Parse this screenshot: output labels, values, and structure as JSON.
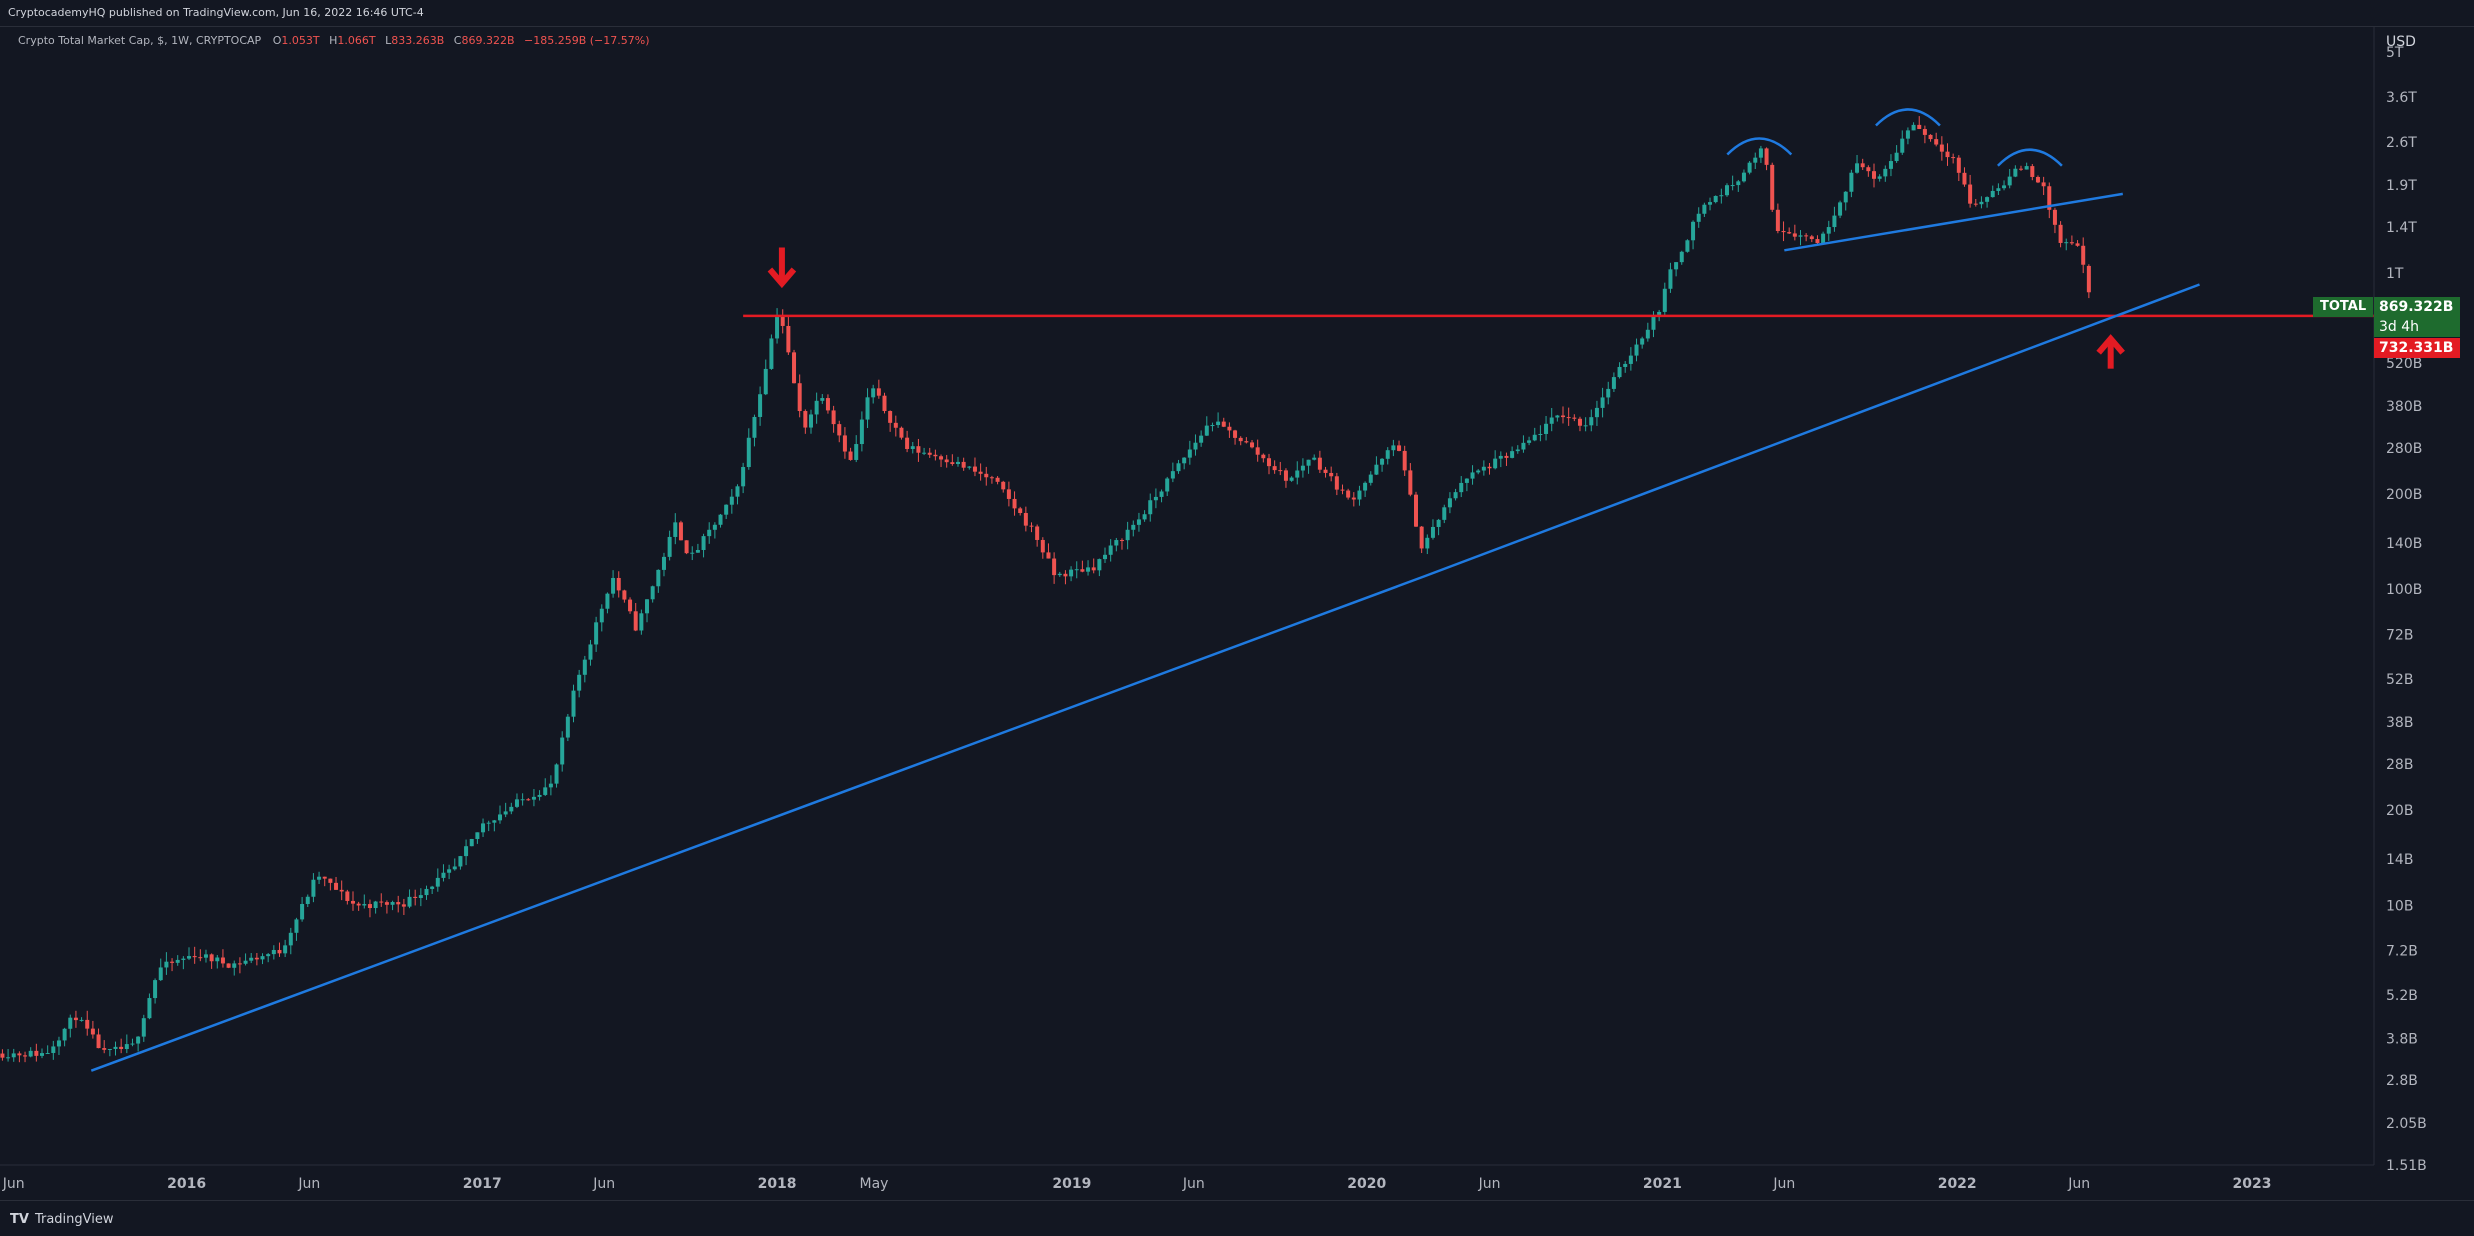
{
  "header": {
    "publisher_line": "CryptocademyHQ published on TradingView.com, Jun 16, 2022 16:46 UTC-4"
  },
  "legend": {
    "symbol_line": "Crypto Total Market Cap, $, 1W, CRYPTOCAP",
    "open_label": "O",
    "open": "1.053T",
    "high_label": "H",
    "high": "1.066T",
    "low_label": "L",
    "low": "833.263B",
    "close_label": "C",
    "close": "869.322B",
    "change": "−185.259B (−17.57%)"
  },
  "price_scale": {
    "currency": "USD",
    "labels": [
      "5T",
      "3.6T",
      "2.6T",
      "1.9T",
      "1.4T",
      "1T",
      "520B",
      "380B",
      "280B",
      "200B",
      "140B",
      "100B",
      "72B",
      "52B",
      "38B",
      "28B",
      "20B",
      "14B",
      "10B",
      "7.2B",
      "5.2B",
      "3.8B",
      "2.8B",
      "2.05B",
      "1.51B"
    ],
    "current_tag": {
      "symbol": "TOTAL",
      "price": "869.322B",
      "countdown": "3d 4h",
      "color": "#1e6b2e"
    },
    "level_tag": {
      "price": "732.331B",
      "color": "#e31b23"
    }
  },
  "time_axis": {
    "labels": [
      "Jun",
      "2016",
      "Jun",
      "2017",
      "Jun",
      "2018",
      "May",
      "2019",
      "Jun",
      "2020",
      "Jun",
      "2021",
      "Jun",
      "2022",
      "Jun",
      "2023"
    ]
  },
  "footer": {
    "brand": "TradingView",
    "brand_mark": "TV"
  },
  "colors": {
    "up": "#26a69a",
    "down": "#ef5350",
    "trend": "#1f7ae0",
    "horizontal_level": "#e31b23",
    "arrow": "#e31b23",
    "background": "#131722"
  },
  "chart_data": {
    "type": "candlestick",
    "title": "Crypto Total Market Cap, $, 1W, CRYPTOCAP",
    "ylabel": "USD",
    "y_scale": "log",
    "ylim": [
      1510000000.0,
      6000000000000.0
    ],
    "xlim": [
      "2015-05-15",
      "2023-06-01"
    ],
    "x_ticks": [
      "2015-06-01",
      "2016-01-01",
      "2016-06-01",
      "2017-01-01",
      "2017-06-01",
      "2018-01-01",
      "2018-05-01",
      "2019-01-01",
      "2019-06-01",
      "2020-01-01",
      "2020-06-01",
      "2021-01-01",
      "2021-06-01",
      "2022-01-01",
      "2022-06-01",
      "2023-01-01"
    ],
    "price_path_usd_bn": [
      [
        "2015-05-15",
        3.4
      ],
      [
        "2015-07-15",
        3.4
      ],
      [
        "2015-08-20",
        4.5
      ],
      [
        "2015-09-25",
        3.4
      ],
      [
        "2015-11-01",
        3.6
      ],
      [
        "2015-12-01",
        6.3
      ],
      [
        "2016-01-15",
        7.0
      ],
      [
        "2016-03-01",
        6.5
      ],
      [
        "2016-05-01",
        7.2
      ],
      [
        "2016-06-15",
        12.5
      ],
      [
        "2016-08-01",
        10.0
      ],
      [
        "2016-10-01",
        10.2
      ],
      [
        "2016-12-01",
        13.0
      ],
      [
        "2017-01-05",
        18.0
      ],
      [
        "2017-03-01",
        22.0
      ],
      [
        "2017-04-01",
        24.0
      ],
      [
        "2017-05-01",
        50.0
      ],
      [
        "2017-06-15",
        110.0
      ],
      [
        "2017-07-15",
        75.0
      ],
      [
        "2017-09-01",
        160.0
      ],
      [
        "2017-09-20",
        125.0
      ],
      [
        "2017-11-15",
        200.0
      ],
      [
        "2017-12-15",
        420.0
      ],
      [
        "2018-01-07",
        795.0
      ],
      [
        "2018-02-06",
        320.0
      ],
      [
        "2018-03-01",
        420.0
      ],
      [
        "2018-04-07",
        250.0
      ],
      [
        "2018-05-01",
        440.0
      ],
      [
        "2018-06-15",
        280.0
      ],
      [
        "2018-08-01",
        260.0
      ],
      [
        "2018-10-01",
        220.0
      ],
      [
        "2018-11-20",
        150.0
      ],
      [
        "2018-12-15",
        110.0
      ],
      [
        "2019-02-01",
        118.0
      ],
      [
        "2019-04-01",
        170.0
      ],
      [
        "2019-06-26",
        340.0
      ],
      [
        "2019-08-01",
        300.0
      ],
      [
        "2019-10-01",
        220.0
      ],
      [
        "2019-10-28",
        265.0
      ],
      [
        "2019-12-15",
        190.0
      ],
      [
        "2020-02-12",
        295.0
      ],
      [
        "2020-03-13",
        135.0
      ],
      [
        "2020-05-01",
        220.0
      ],
      [
        "2020-07-15",
        280.0
      ],
      [
        "2020-09-01",
        360.0
      ],
      [
        "2020-10-01",
        330.0
      ],
      [
        "2020-11-15",
        500.0
      ],
      [
        "2020-12-31",
        760.0
      ],
      [
        "2021-01-15",
        1000.0
      ],
      [
        "2021-02-21",
        1600.0
      ],
      [
        "2021-04-01",
        1900.0
      ],
      [
        "2021-05-12",
        2500.0
      ],
      [
        "2021-05-23",
        1400.0
      ],
      [
        "2021-07-20",
        1260.0
      ],
      [
        "2021-09-06",
        2300.0
      ],
      [
        "2021-09-28",
        1900.0
      ],
      [
        "2021-11-10",
        3000.0
      ],
      [
        "2022-01-01",
        2300.0
      ],
      [
        "2022-01-24",
        1600.0
      ],
      [
        "2022-03-29",
        2200.0
      ],
      [
        "2022-04-20",
        1900.0
      ],
      [
        "2022-05-12",
        1250.0
      ],
      [
        "2022-06-05",
        1200.0
      ],
      [
        "2022-06-16",
        869.322
      ]
    ],
    "last_candle": {
      "open": 1053,
      "high": 1066,
      "low": 833.263,
      "close": 869.322,
      "unit": "USD bn"
    },
    "annotations": [
      {
        "type": "horizontal_line",
        "value_usd_bn": 732.331,
        "from": "2017-11-20",
        "color": "#e31b23"
      },
      {
        "type": "trend_line",
        "points": [
          [
            "2015-09-05",
            3.0
          ],
          [
            "2020-03-13",
            110.0
          ],
          [
            "2022-10-28",
            920.0
          ]
        ],
        "color": "#1f7ae0"
      },
      {
        "type": "trend_line",
        "points": [
          [
            "2021-06-01",
            1180.0
          ],
          [
            "2022-07-25",
            1780.0
          ]
        ],
        "color": "#1f7ae0"
      },
      {
        "type": "arc",
        "center": [
          "2021-05-01",
          2550.0
        ],
        "color": "#1f7ae0"
      },
      {
        "type": "arc",
        "center": [
          "2021-11-01",
          3150.0
        ],
        "color": "#1f7ae0"
      },
      {
        "type": "arc",
        "center": [
          "2022-04-01",
          2350.0
        ],
        "color": "#1f7ae0"
      },
      {
        "type": "arrow_down",
        "at": [
          "2018-01-07",
          900.0
        ],
        "color": "#e31b23"
      },
      {
        "type": "arrow_up",
        "at": [
          "2022-07-10",
          620.0
        ],
        "color": "#e31b23"
      }
    ]
  }
}
